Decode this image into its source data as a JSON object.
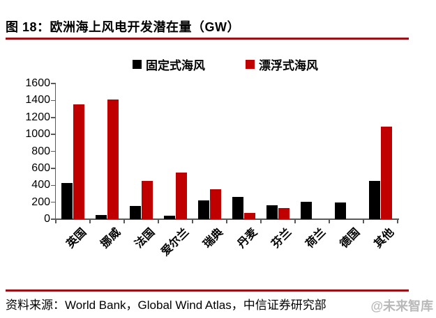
{
  "title": "图 18：欧洲海上风电开发潜在量（GW）",
  "source": "资料来源：World Bank，Global Wind Atlas，中信证券研究部",
  "watermark": "@未来智库",
  "accent_rule_color": "#9a1014",
  "chart_data": {
    "type": "bar",
    "title": "欧洲海上风电开发潜在量（GW）",
    "categories": [
      "英国",
      "挪威",
      "法国",
      "爱尔兰",
      "瑞典",
      "丹麦",
      "芬兰",
      "荷兰",
      "德国",
      "其他"
    ],
    "series": [
      {
        "name": "固定式海风",
        "color": "#000000",
        "values": [
          430,
          50,
          160,
          40,
          220,
          265,
          165,
          205,
          200,
          455
        ]
      },
      {
        "name": "漂浮式海风",
        "color": "#c00000",
        "values": [
          1355,
          1410,
          450,
          550,
          350,
          70,
          130,
          0,
          0,
          1090
        ]
      }
    ],
    "ylim": [
      0,
      1600
    ],
    "ytick_step": 200,
    "xlabel": "",
    "ylabel": "",
    "grid": false,
    "legend_position": "top"
  }
}
